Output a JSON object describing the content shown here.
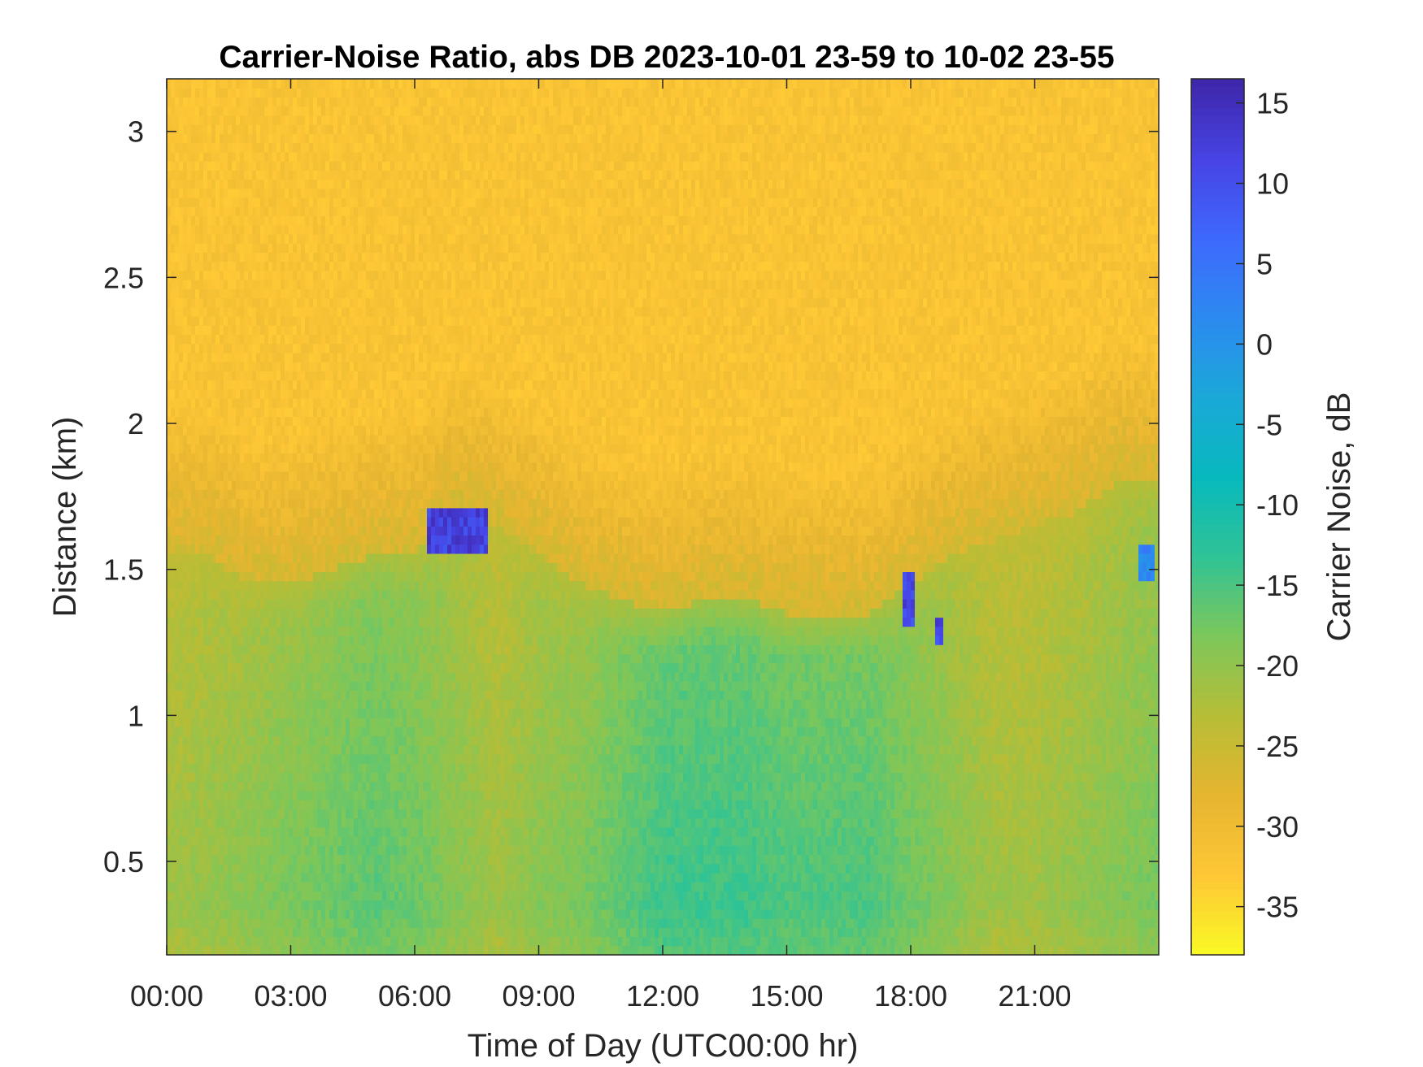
{
  "chart_data": {
    "type": "heatmap",
    "title": "Carrier-Noise Ratio, abs DB 2023-10-01 23-59 to 10-02 23-55",
    "xlabel": "Time of Day (UTC00:00 hr)",
    "ylabel": "Distance (km)",
    "colorbar_label": "Carrier Noise, dB",
    "x_unit": "hours",
    "xlim": [
      0,
      24
    ],
    "ylim": [
      0.18,
      3.18
    ],
    "clim": [
      -38,
      16.5
    ],
    "x_ticks": [
      0,
      3,
      6,
      9,
      12,
      15,
      18,
      21
    ],
    "x_tick_labels": [
      "00:00",
      "03:00",
      "06:00",
      "09:00",
      "12:00",
      "15:00",
      "18:00",
      "21:00"
    ],
    "y_ticks": [
      0.5,
      1,
      1.5,
      2,
      2.5,
      3
    ],
    "y_tick_labels": [
      "0.5",
      "1",
      "1.5",
      "2",
      "2.5",
      "3"
    ],
    "colorbar_ticks": [
      15,
      10,
      5,
      0,
      -5,
      -10,
      -15,
      -20,
      -25,
      -30,
      -35
    ],
    "colorbar_tick_labels": [
      "15",
      "10",
      "5",
      "0",
      "-5",
      "-10",
      "-15",
      "-20",
      "-25",
      "-30",
      "-35"
    ],
    "colormap": [
      "#3e26a8",
      "#4743e4",
      "#3e69fc",
      "#2c8af0",
      "#1ba8d8",
      "#07b9bd",
      "#30c395",
      "#7dc75a",
      "#b7bd36",
      "#e6b530",
      "#fec736",
      "#f9f925"
    ],
    "profile_time_hours": [
      0,
      1,
      2,
      3,
      4,
      5,
      6,
      7,
      8,
      9,
      10,
      11,
      12,
      13,
      14,
      15,
      16,
      17,
      18,
      19,
      20,
      21,
      22,
      23,
      24
    ],
    "profile_top_km": [
      1.55,
      1.55,
      1.45,
      1.45,
      1.5,
      1.55,
      1.55,
      1.7,
      1.65,
      1.55,
      1.45,
      1.4,
      1.35,
      1.4,
      1.4,
      1.35,
      1.35,
      1.35,
      1.45,
      1.55,
      1.6,
      1.65,
      1.7,
      1.8,
      1.8
    ],
    "profile_surface_dB": [
      -20,
      -19,
      -18,
      -17,
      -16,
      -15,
      -16,
      -18,
      -20,
      -18,
      -17,
      -15,
      -13,
      -13,
      -13,
      -14,
      -14,
      -14,
      -16,
      -18,
      -20,
      -20,
      -19,
      -18,
      -17
    ],
    "strong_returns": [
      {
        "t": [
          6.3,
          7.8
        ],
        "z": [
          1.55,
          1.72
        ],
        "value": 15
      },
      {
        "t": [
          17.8,
          18.1
        ],
        "z": [
          1.3,
          1.5
        ],
        "value": 14
      },
      {
        "t": [
          18.6,
          18.8
        ],
        "z": [
          1.25,
          1.35
        ],
        "value": 14
      },
      {
        "t": [
          23.5,
          23.9
        ],
        "z": [
          1.45,
          1.6
        ],
        "value": 5
      }
    ]
  }
}
